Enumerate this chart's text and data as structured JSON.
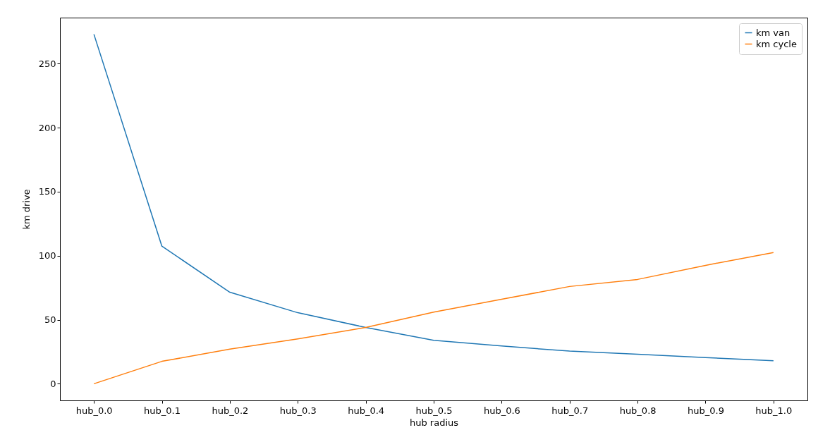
{
  "chart_data": {
    "type": "line",
    "xlabel": "hub radius",
    "ylabel": "km drive",
    "categories": [
      "hub_0.0",
      "hub_0.1",
      "hub_0.2",
      "hub_0.3",
      "hub_0.4",
      "hub_0.5",
      "hub_0.6",
      "hub_0.7",
      "hub_0.8",
      "hub_0.9",
      "hub_1.0"
    ],
    "series": [
      {
        "name": "km van",
        "color": "#1f77b4",
        "values": [
          273,
          107.5,
          71.5,
          55.5,
          44,
          34,
          29.5,
          25.5,
          23,
          20.5,
          18
        ]
      },
      {
        "name": "km cycle",
        "color": "#ff7f0e",
        "values": [
          0,
          17.5,
          27,
          35,
          44,
          56,
          66,
          76,
          81.5,
          92.5,
          102.5
        ]
      }
    ],
    "ylim": [
      -13,
      286
    ],
    "yticks": [
      0,
      50,
      100,
      150,
      200,
      250
    ],
    "grid": false,
    "legend": "top right",
    "marker": "none",
    "line_style": "solid"
  }
}
